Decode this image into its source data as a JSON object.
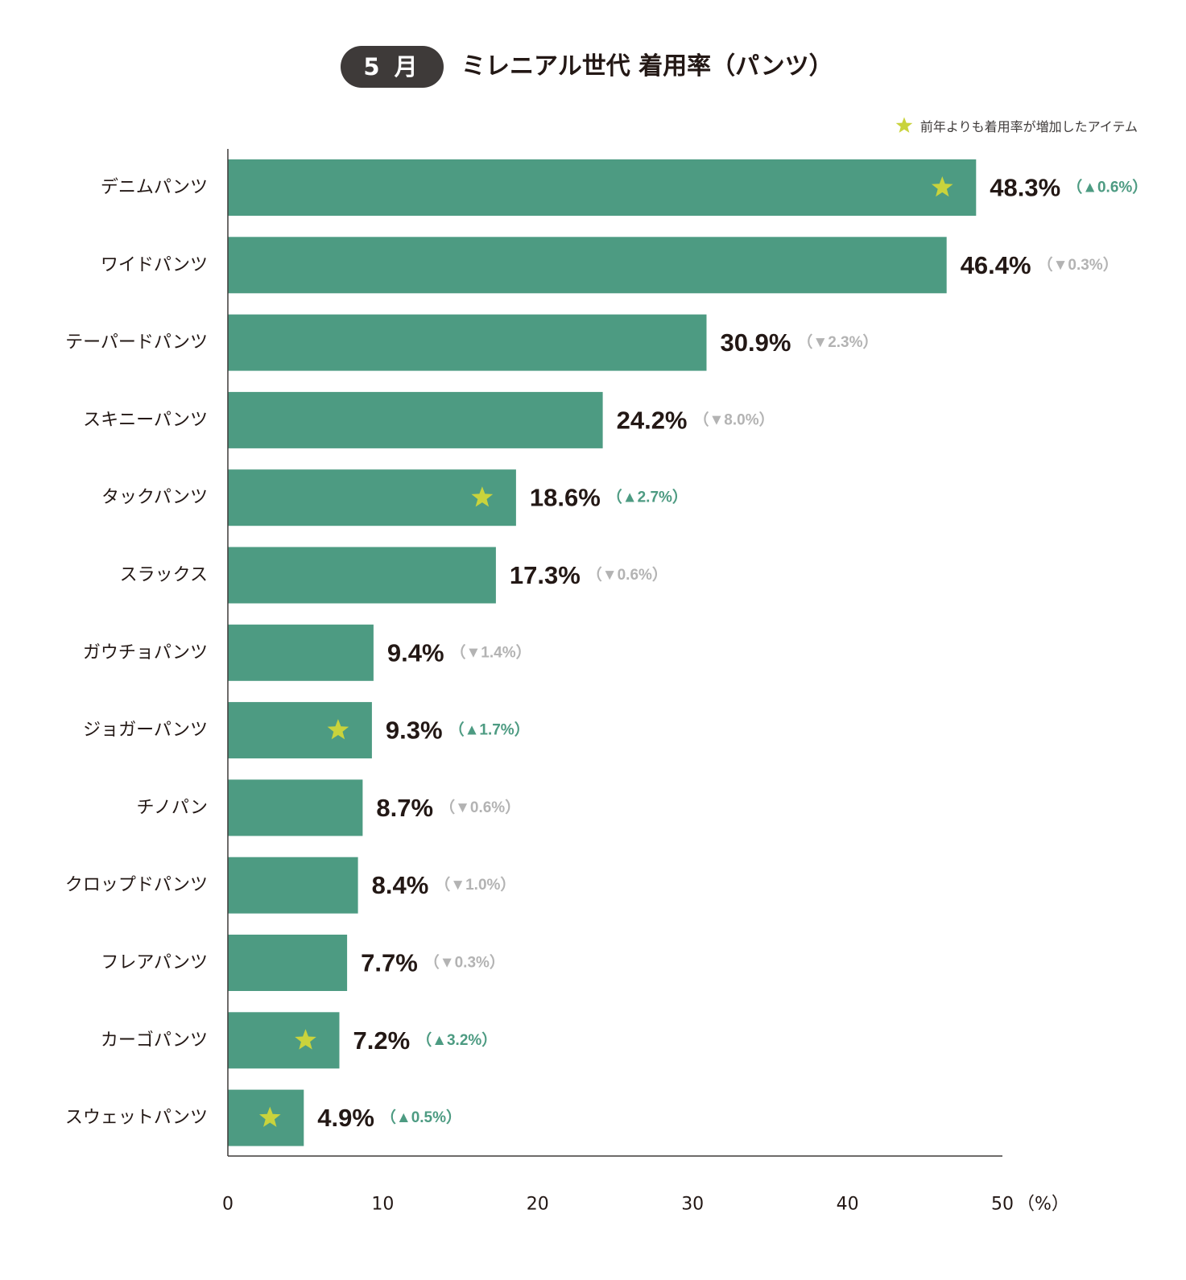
{
  "header": {
    "badge": "5 月",
    "title": "ミレニアル世代 着用率（パンツ）"
  },
  "legend": {
    "label": "前年よりも着用率が増加したアイテム",
    "icon": "star-icon"
  },
  "colors": {
    "bar": "#4d9b82",
    "star": "#c9d33c",
    "up": "#4d9b82",
    "down": "#b3b3b3",
    "axis": "#3e3a39"
  },
  "chart_data": {
    "type": "bar",
    "orientation": "horizontal",
    "title": "ミレニアル世代 着用率（パンツ）",
    "xlim": [
      0,
      50
    ],
    "x_ticks": [
      "0",
      "10",
      "20",
      "30",
      "40",
      "50"
    ],
    "x_unit": "（%）",
    "categories": [
      "デニムパンツ",
      "ワイドパンツ",
      "テーパードパンツ",
      "スキニーパンツ",
      "タックパンツ",
      "スラックス",
      "ガウチョパンツ",
      "ジョガーパンツ",
      "チノパン",
      "クロップドパンツ",
      "フレアパンツ",
      "カーゴパンツ",
      "スウェットパンツ"
    ],
    "values": [
      48.3,
      46.4,
      30.9,
      24.2,
      18.6,
      17.3,
      9.4,
      9.3,
      8.7,
      8.4,
      7.7,
      7.2,
      4.9
    ],
    "value_labels": [
      "48.3%",
      "46.4%",
      "30.9%",
      "24.2%",
      "18.6%",
      "17.3%",
      "9.4%",
      "9.3%",
      "8.7%",
      "8.4%",
      "7.7%",
      "7.2%",
      "4.9%"
    ],
    "change_labels": [
      "（▲0.6%）",
      "（▼0.3%）",
      "（▼2.3%）",
      "（▼8.0%）",
      "（▲2.7%）",
      "（▼0.6%）",
      "（▼1.4%）",
      "（▲1.7%）",
      "（▼0.6%）",
      "（▼1.0%）",
      "（▼0.3%）",
      "（▲3.2%）",
      "（▲0.5%）"
    ],
    "change_direction": [
      "up",
      "down",
      "down",
      "down",
      "up",
      "down",
      "down",
      "up",
      "down",
      "down",
      "down",
      "up",
      "up"
    ],
    "increased": [
      true,
      false,
      false,
      false,
      true,
      false,
      false,
      true,
      false,
      false,
      false,
      true,
      true
    ],
    "grid": false
  }
}
